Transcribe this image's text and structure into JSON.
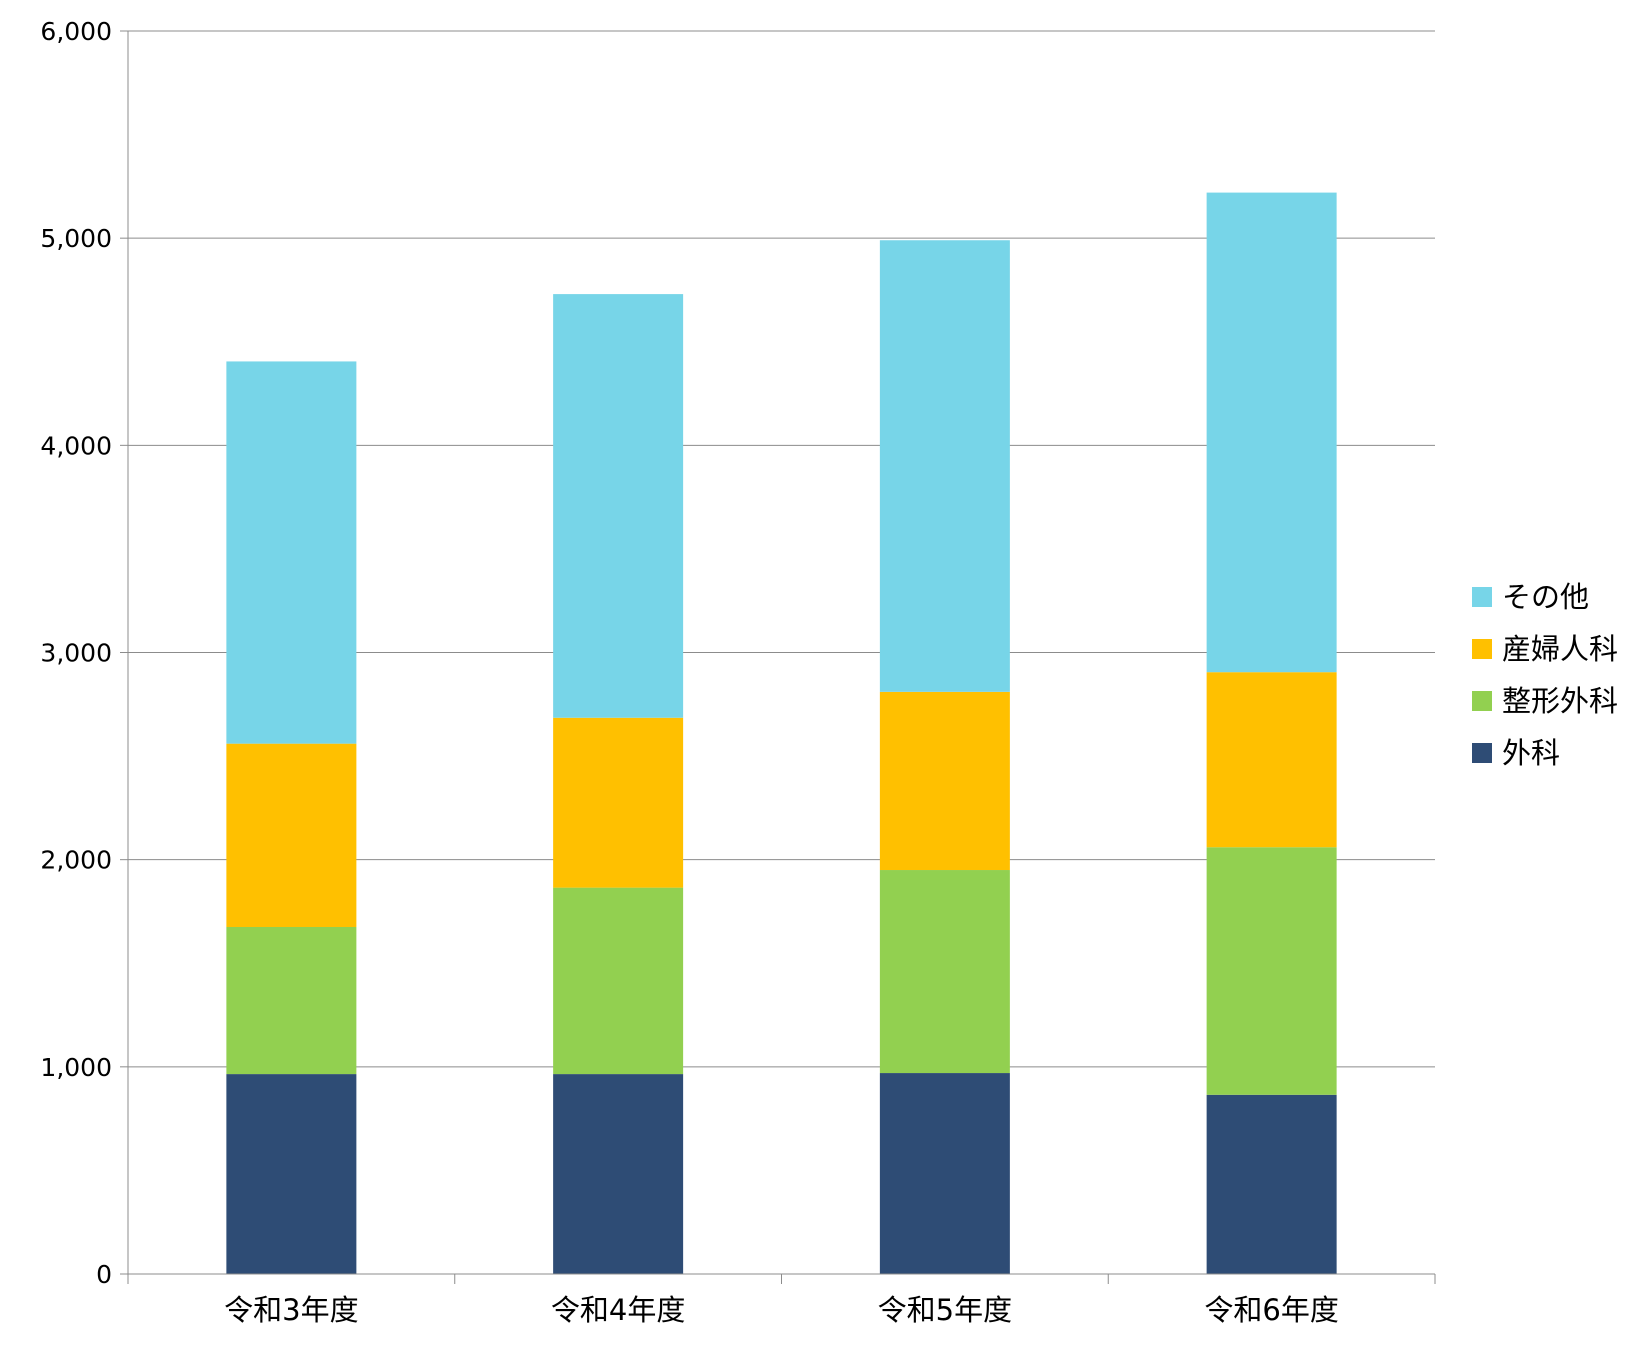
{
  "chart_data": {
    "type": "bar",
    "stacked": true,
    "categories": [
      "令和3年度",
      "令和4年度",
      "令和5年度",
      "令和6年度"
    ],
    "series": [
      {
        "name": "外科",
        "color": "#2E4C75",
        "values": [
          965,
          965,
          970,
          865
        ]
      },
      {
        "name": "整形外科",
        "color": "#92D050",
        "values": [
          710,
          900,
          980,
          1195
        ]
      },
      {
        "name": "産婦人科",
        "color": "#FFC000",
        "values": [
          885,
          820,
          860,
          845
        ]
      },
      {
        "name": "その他",
        "color": "#77D5E8",
        "values": [
          1845,
          2045,
          2180,
          2315
        ]
      }
    ],
    "ylim": [
      0,
      6000
    ],
    "yticks": [
      0,
      1000,
      2000,
      3000,
      4000,
      5000,
      6000
    ],
    "ytick_labels": [
      "0",
      "1,000",
      "2,000",
      "3,000",
      "4,000",
      "5,000",
      "6,000"
    ],
    "grid": true,
    "legend_position": "right",
    "legend_order": [
      "その他",
      "産婦人科",
      "整形外科",
      "外科"
    ],
    "title": "",
    "xlabel": "",
    "ylabel": ""
  }
}
